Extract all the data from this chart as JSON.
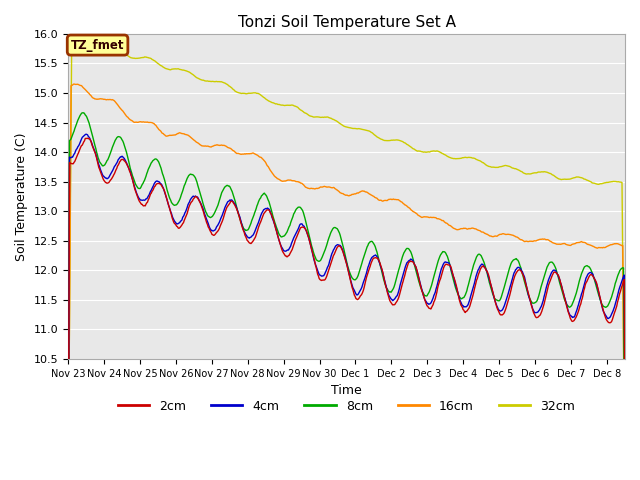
{
  "title": "Tonzi Soil Temperature Set A",
  "xlabel": "Time",
  "ylabel": "Soil Temperature (C)",
  "ylim": [
    10.5,
    16.0
  ],
  "yticks": [
    10.5,
    11.0,
    11.5,
    12.0,
    12.5,
    13.0,
    13.5,
    14.0,
    14.5,
    15.0,
    15.5,
    16.0
  ],
  "xtick_labels": [
    "Nov 23",
    "Nov 24",
    "Nov 25",
    "Nov 26",
    "Nov 27",
    "Nov 28",
    "Nov 29",
    "Nov 30",
    "Dec 1",
    "Dec 2",
    "Dec 3",
    "Dec 4",
    "Dec 5",
    "Dec 6",
    "Dec 7",
    "Dec 8"
  ],
  "legend_labels": [
    "2cm",
    "4cm",
    "8cm",
    "16cm",
    "32cm"
  ],
  "legend_colors": [
    "#cc0000",
    "#0000cc",
    "#00aa00",
    "#ff8800",
    "#cccc00"
  ],
  "annotation_text": "TZ_fmet",
  "annotation_bg": "#ffff99",
  "annotation_border": "#993300",
  "plot_bg": "#e8e8e8",
  "fig_bg": "#ffffff",
  "n_days": 15.5,
  "n_points": 744,
  "seed": 0
}
